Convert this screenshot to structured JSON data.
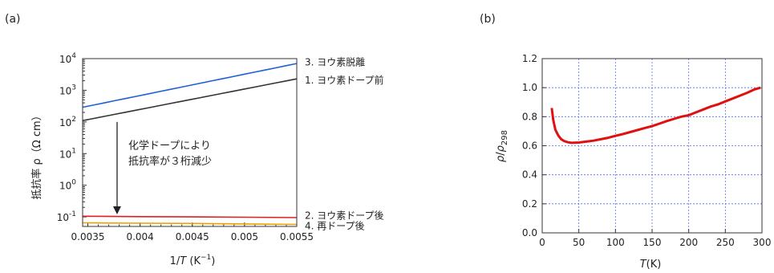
{
  "chart_data": [
    {
      "panel_label": "(a)",
      "type": "line",
      "xlabel_prefix": "1/",
      "xlabel_var": "T",
      "xlabel_unit_open": " (K",
      "xlabel_unit_sup": "−1",
      "xlabel_unit_close": ")",
      "ylabel": "抵抗率 ρ（Ω cm）",
      "xlim": [
        0.00345,
        0.0055
      ],
      "ylim": [
        0.05,
        10000
      ],
      "yscale": "log",
      "grid": false,
      "x_ticks": [
        0.0035,
        0.004,
        0.0045,
        0.005,
        0.0055
      ],
      "x_tick_labels": [
        "0.0035",
        "0.004",
        "0.0045",
        "0.005",
        "0.0055"
      ],
      "y_ticks": [
        {
          "value": 10000,
          "base": "10",
          "exp": "4"
        },
        {
          "value": 1000,
          "base": "10",
          "exp": "3"
        },
        {
          "value": 100,
          "base": "10",
          "exp": "2"
        },
        {
          "value": 10,
          "base": "10",
          "exp": "1"
        },
        {
          "value": 1,
          "base": "10",
          "exp": "0"
        },
        {
          "value": 0.1,
          "base": "10",
          "exp": "-1"
        }
      ],
      "series": [
        {
          "name": "3. ヨウ素脱離",
          "color": "#1f5fd6",
          "x": [
            0.00345,
            0.0055
          ],
          "y": [
            290,
            7000
          ]
        },
        {
          "name": "1. ヨウ素ドープ前",
          "color": "#333333",
          "x": [
            0.00345,
            0.0055
          ],
          "y": [
            110,
            2300
          ]
        },
        {
          "name": "2. ヨウ素ドープ後",
          "color": "#e02020",
          "x": [
            0.00345,
            0.004,
            0.0045,
            0.005,
            0.0055
          ],
          "y": [
            0.105,
            0.102,
            0.1,
            0.098,
            0.095
          ]
        },
        {
          "name": "4. 再ドープ後",
          "color": "#f0a000",
          "x": [
            0.00345,
            0.004,
            0.0045,
            0.005,
            0.0055
          ],
          "y": [
            0.065,
            0.063,
            0.062,
            0.06,
            0.058
          ]
        }
      ],
      "annotation": {
        "lines": [
          "化学ドープにより",
          "抵抗率が３桁減少"
        ],
        "arrow_from_x": 0.00378,
        "arrow_from_y": 100,
        "arrow_to_x": 0.00378,
        "arrow_to_y": 0.12
      }
    },
    {
      "panel_label": "(b)",
      "type": "line",
      "xlabel_var": "T",
      "xlabel_unit": "(K)",
      "ylabel_num": "ρ",
      "ylabel_den": "ρ",
      "ylabel_den_sub": "298",
      "xlim": [
        0,
        300
      ],
      "ylim": [
        0,
        1.2
      ],
      "grid": true,
      "grid_color": "#5a6cf0",
      "x_ticks": [
        0,
        50,
        100,
        150,
        200,
        250,
        300
      ],
      "x_tick_labels": [
        "0",
        "50",
        "100",
        "150",
        "200",
        "250",
        "300"
      ],
      "y_ticks": [
        0,
        0.2,
        0.4,
        0.6,
        0.8,
        1.0,
        1.2
      ],
      "y_tick_labels": [
        "0.0",
        "0.2",
        "0.4",
        "0.6",
        "0.8",
        "1.0",
        "1.2"
      ],
      "series": [
        {
          "color": "#e01010",
          "x": [
            13,
            15,
            18,
            22,
            26,
            30,
            35,
            40,
            50,
            60,
            70,
            80,
            90,
            100,
            110,
            120,
            130,
            140,
            150,
            160,
            170,
            180,
            190,
            200,
            210,
            220,
            230,
            240,
            250,
            260,
            270,
            280,
            290,
            298
          ],
          "y": [
            0.86,
            0.78,
            0.71,
            0.67,
            0.645,
            0.632,
            0.624,
            0.62,
            0.622,
            0.628,
            0.635,
            0.645,
            0.655,
            0.668,
            0.68,
            0.694,
            0.708,
            0.722,
            0.735,
            0.752,
            0.77,
            0.785,
            0.8,
            0.81,
            0.83,
            0.85,
            0.87,
            0.885,
            0.905,
            0.925,
            0.945,
            0.965,
            0.988,
            1.0
          ]
        }
      ]
    }
  ]
}
